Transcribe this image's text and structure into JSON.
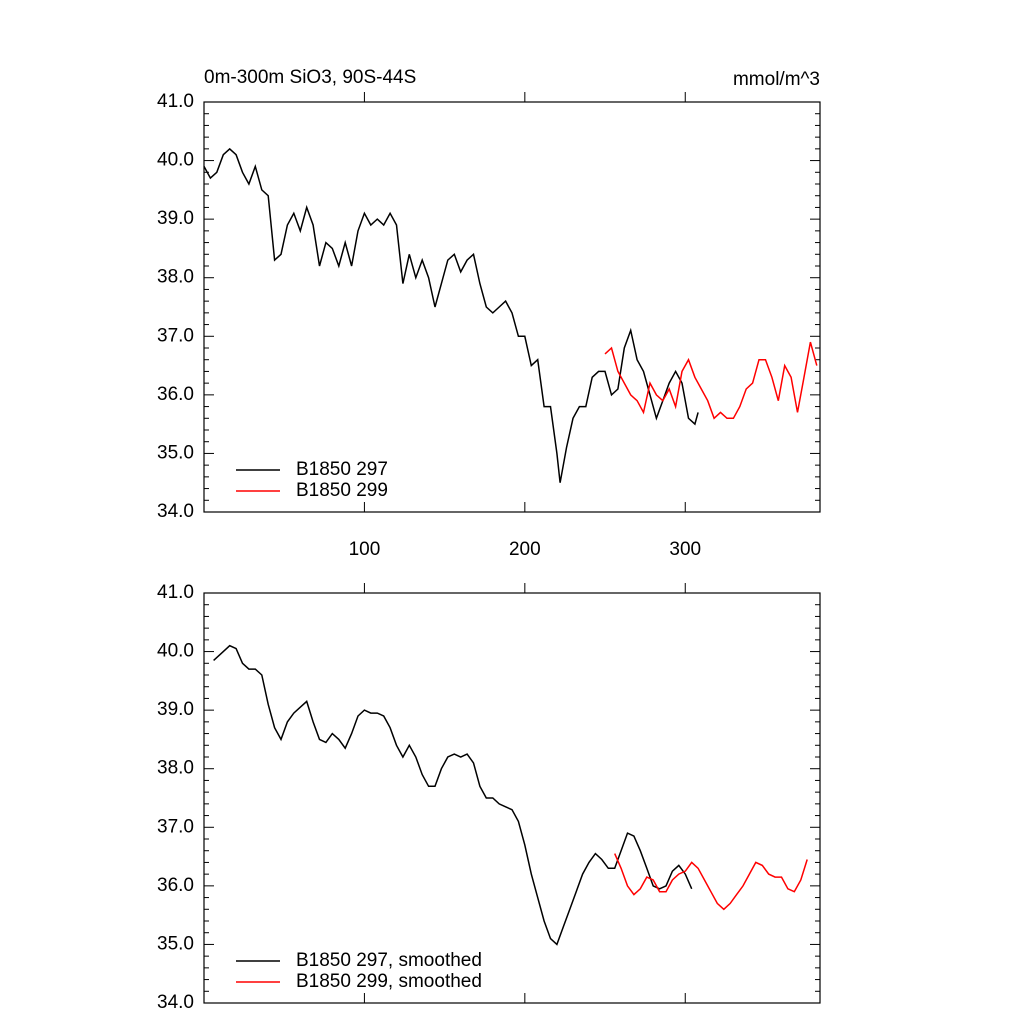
{
  "chart_data": [
    {
      "type": "line",
      "title": "0m-300m SiO3, 90S-44S",
      "units": "mmol/m^3",
      "xlim": [
        0,
        384
      ],
      "ylim": [
        34,
        41
      ],
      "xticks": [
        100,
        200,
        300
      ],
      "xtick_labels": true,
      "yticks": [
        {
          "value": 34,
          "label": "34.0"
        },
        {
          "value": 35,
          "label": "35.0"
        },
        {
          "value": 36,
          "label": "36.0"
        },
        {
          "value": 37,
          "label": "37.0"
        },
        {
          "value": 38,
          "label": "38.0"
        },
        {
          "value": 39,
          "label": "39.0"
        },
        {
          "value": 40,
          "label": "40.0"
        },
        {
          "value": 41,
          "label": "41.0"
        }
      ],
      "y_minor_divisions": 5,
      "legend": "lower left",
      "series": [
        {
          "name": "B1850 297",
          "color": "#000000",
          "x": [
            0,
            4,
            8,
            12,
            16,
            20,
            24,
            28,
            32,
            36,
            40,
            44,
            48,
            52,
            56,
            60,
            64,
            68,
            72,
            76,
            80,
            84,
            88,
            92,
            96,
            100,
            104,
            108,
            112,
            116,
            120,
            124,
            128,
            132,
            136,
            140,
            144,
            148,
            152,
            156,
            160,
            164,
            168,
            172,
            176,
            180,
            184,
            188,
            192,
            196,
            200,
            204,
            208,
            212,
            216,
            220,
            222,
            226,
            230,
            234,
            238,
            242,
            246,
            250,
            254,
            258,
            262,
            266,
            270,
            274,
            278,
            282,
            286,
            290,
            294,
            298,
            302,
            306,
            308
          ],
          "values": [
            39.9,
            39.7,
            39.8,
            40.1,
            40.2,
            40.1,
            39.8,
            39.6,
            39.9,
            39.5,
            39.4,
            38.3,
            38.4,
            38.9,
            39.1,
            38.8,
            39.2,
            38.9,
            38.2,
            38.6,
            38.5,
            38.2,
            38.6,
            38.2,
            38.8,
            39.1,
            38.9,
            39.0,
            38.9,
            39.1,
            38.9,
            37.9,
            38.4,
            38.0,
            38.3,
            38.0,
            37.5,
            37.9,
            38.3,
            38.4,
            38.1,
            38.3,
            38.4,
            37.9,
            37.5,
            37.4,
            37.5,
            37.6,
            37.4,
            37.0,
            37.0,
            36.5,
            36.6,
            35.8,
            35.8,
            35.0,
            34.5,
            35.1,
            35.6,
            35.8,
            35.8,
            36.3,
            36.4,
            36.4,
            36.0,
            36.1,
            36.8,
            37.1,
            36.6,
            36.4,
            36.0,
            35.6,
            35.9,
            36.2,
            36.4,
            36.2,
            35.6,
            35.5,
            35.7
          ]
        },
        {
          "name": "B1850 299",
          "color": "#ff0000",
          "x": [
            250,
            254,
            258,
            262,
            266,
            270,
            274,
            278,
            282,
            286,
            290,
            294,
            298,
            302,
            306,
            310,
            314,
            318,
            322,
            326,
            330,
            334,
            338,
            342,
            346,
            350,
            354,
            358,
            362,
            366,
            370,
            374,
            378,
            382
          ],
          "values": [
            36.7,
            36.8,
            36.4,
            36.2,
            36.0,
            35.9,
            35.7,
            36.2,
            36.0,
            35.9,
            36.1,
            35.8,
            36.4,
            36.6,
            36.3,
            36.1,
            35.9,
            35.6,
            35.7,
            35.6,
            35.6,
            35.8,
            36.1,
            36.2,
            36.6,
            36.6,
            36.3,
            35.9,
            36.5,
            36.3,
            35.7,
            36.3,
            36.9,
            36.5
          ]
        }
      ]
    },
    {
      "type": "line",
      "xlim": [
        0,
        384
      ],
      "ylim": [
        34,
        41
      ],
      "xticks": [
        100,
        200,
        300
      ],
      "xtick_labels": false,
      "yticks": [
        {
          "value": 34,
          "label": "34.0"
        },
        {
          "value": 35,
          "label": "35.0"
        },
        {
          "value": 36,
          "label": "36.0"
        },
        {
          "value": 37,
          "label": "37.0"
        },
        {
          "value": 38,
          "label": "38.0"
        },
        {
          "value": 39,
          "label": "39.0"
        },
        {
          "value": 40,
          "label": "40.0"
        },
        {
          "value": 41,
          "label": "41.0"
        }
      ],
      "y_minor_divisions": 5,
      "legend": "lower left",
      "series": [
        {
          "name": "B1850 297, smoothed",
          "color": "#000000",
          "x": [
            6,
            12,
            16,
            20,
            24,
            28,
            32,
            36,
            40,
            44,
            48,
            52,
            56,
            60,
            64,
            68,
            72,
            76,
            80,
            84,
            88,
            92,
            96,
            100,
            104,
            108,
            112,
            116,
            120,
            124,
            128,
            132,
            136,
            140,
            144,
            148,
            152,
            156,
            160,
            164,
            168,
            172,
            176,
            180,
            184,
            188,
            192,
            196,
            200,
            204,
            208,
            212,
            216,
            220,
            224,
            228,
            232,
            236,
            240,
            244,
            248,
            252,
            256,
            260,
            264,
            268,
            272,
            276,
            280,
            284,
            288,
            292,
            296,
            300,
            304
          ],
          "values": [
            39.85,
            40.0,
            40.1,
            40.05,
            39.8,
            39.7,
            39.7,
            39.6,
            39.1,
            38.7,
            38.5,
            38.8,
            38.95,
            39.05,
            39.15,
            38.8,
            38.5,
            38.45,
            38.6,
            38.5,
            38.35,
            38.6,
            38.9,
            39.0,
            38.95,
            38.95,
            38.9,
            38.7,
            38.4,
            38.2,
            38.4,
            38.2,
            37.9,
            37.7,
            37.7,
            38.0,
            38.2,
            38.25,
            38.2,
            38.25,
            38.1,
            37.7,
            37.5,
            37.5,
            37.4,
            37.35,
            37.3,
            37.1,
            36.7,
            36.2,
            35.8,
            35.4,
            35.1,
            35.0,
            35.3,
            35.6,
            35.9,
            36.2,
            36.4,
            36.55,
            36.45,
            36.3,
            36.3,
            36.6,
            36.9,
            36.85,
            36.6,
            36.3,
            36.0,
            35.95,
            36.0,
            36.25,
            36.35,
            36.2,
            35.95
          ]
        },
        {
          "name": "B1850 299, smoothed",
          "color": "#ff0000",
          "x": [
            256,
            260,
            264,
            268,
            272,
            276,
            280,
            284,
            288,
            292,
            296,
            300,
            304,
            308,
            312,
            316,
            320,
            324,
            328,
            332,
            336,
            340,
            344,
            348,
            352,
            356,
            360,
            364,
            368,
            372,
            376
          ],
          "values": [
            36.55,
            36.3,
            36.0,
            35.85,
            35.95,
            36.15,
            36.1,
            35.9,
            35.9,
            36.1,
            36.2,
            36.25,
            36.4,
            36.3,
            36.1,
            35.9,
            35.7,
            35.6,
            35.7,
            35.85,
            36.0,
            36.2,
            36.4,
            36.35,
            36.2,
            36.15,
            36.15,
            35.95,
            35.9,
            36.1,
            36.45
          ]
        }
      ]
    }
  ]
}
